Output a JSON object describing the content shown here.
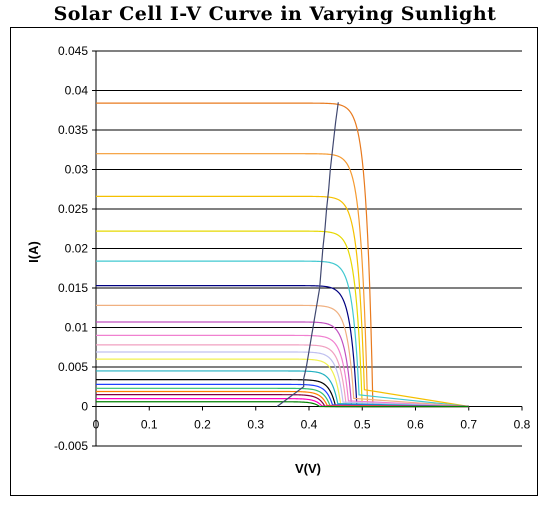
{
  "chart_data": {
    "type": "line",
    "title": "Solar Cell I-V Curve in Varying Sunlight",
    "xlabel": "V(V)",
    "ylabel": "I(A)",
    "xlim": [
      0,
      0.8
    ],
    "ylim": [
      -0.005,
      0.045
    ],
    "x_ticks": [
      "0",
      "0.1",
      "0.2",
      "0.3",
      "0.4",
      "0.5",
      "0.6",
      "0.7",
      "0.8"
    ],
    "y_ticks": [
      "-0.005",
      "0",
      "0.005",
      "0.01",
      "0.015",
      "0.02",
      "0.025",
      "0.03",
      "0.035",
      "0.04",
      "0.045"
    ],
    "grid": "horizontal",
    "series": [
      {
        "color": "#e87a1e",
        "isc": 0.0384,
        "voc": 0.52
      },
      {
        "color": "#f59a30",
        "isc": 0.032,
        "voc": 0.51
      },
      {
        "color": "#f5c000",
        "isc": 0.0266,
        "voc": 0.505
      },
      {
        "color": "#e6d800",
        "isc": 0.0222,
        "voc": 0.5
      },
      {
        "color": "#40c8d0",
        "isc": 0.0184,
        "voc": 0.495
      },
      {
        "color": "#000080",
        "isc": 0.0153,
        "voc": 0.49
      },
      {
        "color": "#f0b080",
        "isc": 0.0128,
        "voc": 0.485
      },
      {
        "color": "#c050c0",
        "isc": 0.0107,
        "voc": 0.48
      },
      {
        "color": "#f080d0",
        "isc": 0.009,
        "voc": 0.475
      },
      {
        "color": "#f0a0c0",
        "isc": 0.0078,
        "voc": 0.47
      },
      {
        "color": "#c0c0f0",
        "isc": 0.0069,
        "voc": 0.465
      },
      {
        "color": "#f0f050",
        "isc": 0.006,
        "voc": 0.46
      },
      {
        "color": "#20b0c0",
        "isc": 0.0045,
        "voc": 0.455
      },
      {
        "color": "#000000",
        "isc": 0.0034,
        "voc": 0.45
      },
      {
        "color": "#2040ff",
        "isc": 0.0028,
        "voc": 0.445
      },
      {
        "color": "#30c070",
        "isc": 0.0023,
        "voc": 0.44
      },
      {
        "color": "#ff8000",
        "isc": 0.0019,
        "voc": 0.435
      },
      {
        "color": "#800040",
        "isc": 0.0015,
        "voc": 0.43
      },
      {
        "color": "#ff00c0",
        "isc": 0.001,
        "voc": 0.425
      },
      {
        "color": "#008000",
        "isc": 0.0006,
        "voc": 0.42
      }
    ],
    "mpp_line": {
      "color": "#404870",
      "points": [
        [
          0.34,
          0.0
        ],
        [
          0.36,
          0.001
        ],
        [
          0.38,
          0.002
        ],
        [
          0.39,
          0.0025
        ],
        [
          0.39,
          0.0035
        ],
        [
          0.395,
          0.005
        ],
        [
          0.4,
          0.007
        ],
        [
          0.405,
          0.009
        ],
        [
          0.41,
          0.011
        ],
        [
          0.415,
          0.013
        ],
        [
          0.42,
          0.015
        ],
        [
          0.423,
          0.0175
        ],
        [
          0.426,
          0.02
        ],
        [
          0.43,
          0.0225
        ],
        [
          0.433,
          0.025
        ],
        [
          0.437,
          0.0275
        ],
        [
          0.44,
          0.03
        ],
        [
          0.445,
          0.033
        ],
        [
          0.45,
          0.036
        ],
        [
          0.455,
          0.0385
        ]
      ]
    }
  }
}
